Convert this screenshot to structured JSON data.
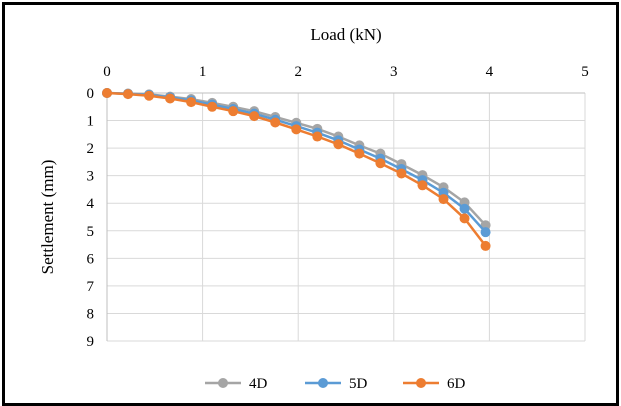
{
  "chart_data": {
    "type": "line",
    "xlabel": "Load (kN)",
    "ylabel": "Settlement  (mm)",
    "xlim": [
      0,
      5
    ],
    "ylim": [
      0,
      9
    ],
    "x_ticks": [
      "0",
      "1",
      "2",
      "3",
      "4",
      "5"
    ],
    "y_ticks": [
      "0",
      "1",
      "2",
      "3",
      "4",
      "5",
      "6",
      "7",
      "8",
      "9"
    ],
    "x_axis_position": "top",
    "y_axis_inverted": true,
    "grid": true,
    "legend_position": "bottom",
    "series": [
      {
        "name": "4D",
        "color": "#a5a5a5",
        "x": [
          0,
          0.22,
          0.44,
          0.66,
          0.88,
          1.1,
          1.32,
          1.54,
          1.76,
          1.98,
          2.2,
          2.42,
          2.64,
          2.86,
          3.08,
          3.3,
          3.52,
          3.74,
          3.96
        ],
        "y": [
          0,
          0.02,
          0.05,
          0.13,
          0.22,
          0.36,
          0.5,
          0.66,
          0.87,
          1.08,
          1.3,
          1.58,
          1.9,
          2.2,
          2.58,
          2.98,
          3.42,
          3.97,
          4.8
        ]
      },
      {
        "name": "5D",
        "color": "#5b9bd5",
        "x": [
          0,
          0.22,
          0.44,
          0.66,
          0.88,
          1.1,
          1.32,
          1.54,
          1.76,
          1.98,
          2.2,
          2.42,
          2.64,
          2.86,
          3.08,
          3.3,
          3.52,
          3.74,
          3.96
        ],
        "y": [
          0,
          0.03,
          0.07,
          0.16,
          0.27,
          0.42,
          0.58,
          0.75,
          0.97,
          1.2,
          1.44,
          1.72,
          2.05,
          2.38,
          2.76,
          3.16,
          3.62,
          4.2,
          5.05
        ]
      },
      {
        "name": "6D",
        "color": "#ed7d31",
        "x": [
          0,
          0.22,
          0.44,
          0.66,
          0.88,
          1.1,
          1.32,
          1.54,
          1.76,
          1.98,
          2.2,
          2.42,
          2.64,
          2.86,
          3.08,
          3.3,
          3.52,
          3.74,
          3.96
        ],
        "y": [
          0,
          0.04,
          0.1,
          0.2,
          0.33,
          0.5,
          0.66,
          0.84,
          1.07,
          1.32,
          1.58,
          1.86,
          2.2,
          2.55,
          2.92,
          3.35,
          3.85,
          4.55,
          5.55
        ]
      }
    ]
  }
}
